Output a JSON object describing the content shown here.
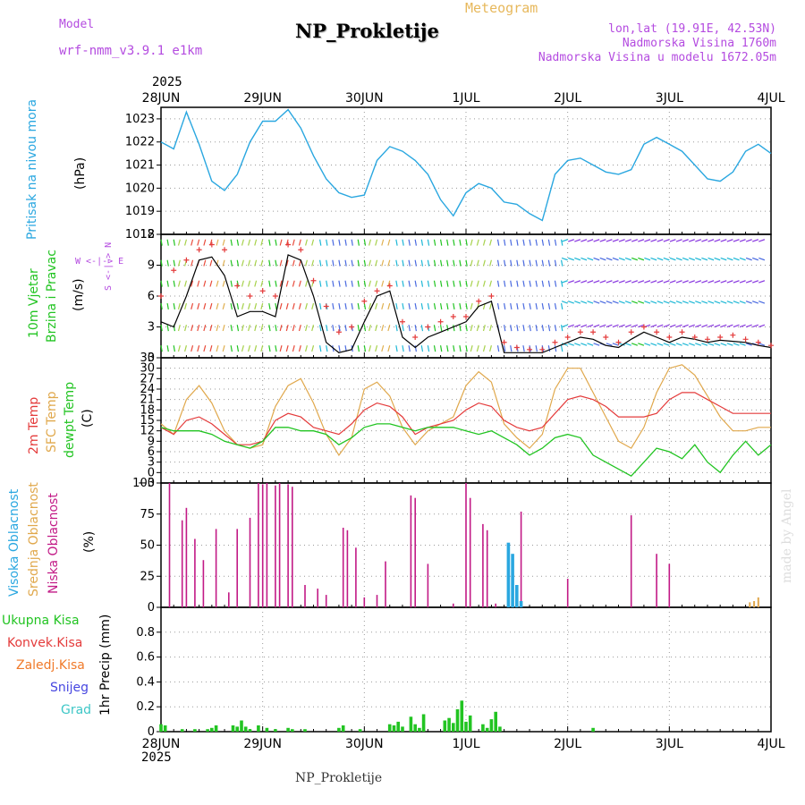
{
  "header": {
    "model_label": "Model",
    "model_name": "wrf-nmm_v3.9.1 e1km",
    "title": "NP_Prokletije",
    "subtitle": "Meteogram",
    "coords": "lon,lat (19.91E, 42.53N)",
    "elevation": "Nadmorska Visina 1760m",
    "model_elevation": "Nadmorska Visina u modelu 1672.05m",
    "year_top": "2025",
    "year_bottom": "2025",
    "footer_name": "NP_Prokletije",
    "credit": "made by Angel"
  },
  "colors": {
    "pressure": "#2aa7e0",
    "wind_speed": "#000000",
    "wind_gust": "#e43b3b",
    "temp2m": "#e43b3b",
    "sfc_temp": "#e0a84c",
    "dewpt": "#22c422",
    "high_cloud": "#2aa7e0",
    "mid_cloud": "#e0a84c",
    "low_cloud": "#c21a86",
    "precip_total": "#22c422"
  },
  "days": [
    "28JUN",
    "29JUN",
    "30JUN",
    "1JUL",
    "2JUL",
    "3JUL",
    "4JUL"
  ],
  "labels": {
    "pressure": {
      "name": "Pritisak na nivou mora",
      "unit": "(hPa)"
    },
    "wind": {
      "name1": "10m Vjetar",
      "name2": "Brzina i Pravac",
      "unit": "(m/s)",
      "compass": "W <-|-> E",
      "compass_v": "S <-|-> N"
    },
    "temp": {
      "l1": "2m Temp",
      "l2": "SFC Temp",
      "l3": "dewpt Temp",
      "unit": "(C)"
    },
    "cloud": {
      "l1": "Visoka Oblacnost",
      "l2": "Srednja Oblacnost",
      "l3": "Niska Oblacnost",
      "unit": "(%)"
    },
    "precip": {
      "l1": "Ukupna Kisa",
      "l2": "Konvek.Kisa",
      "l3": "Zaledj.Kisa",
      "l4": "Snijeg",
      "l5": "Grad",
      "axis": "1hr Precip (mm)"
    }
  },
  "chart_data": [
    {
      "type": "line",
      "name": "pressure",
      "ylabel": "(hPa)",
      "ylim": [
        1018,
        1023.5
      ],
      "yticks": [
        1018,
        1019,
        1020,
        1021,
        1022,
        1023
      ],
      "x_hours": [
        0,
        3,
        6,
        9,
        12,
        15,
        18,
        21,
        24,
        27,
        30,
        33,
        36,
        39,
        42,
        45,
        48,
        51,
        54,
        57,
        60,
        63,
        66,
        69,
        72,
        75,
        78,
        81,
        84,
        87,
        90,
        93,
        96,
        99,
        102,
        105,
        108,
        111,
        114,
        117,
        120,
        123,
        126,
        129,
        132,
        135,
        138,
        141,
        144
      ],
      "values": [
        1022.0,
        1021.7,
        1023.3,
        1021.9,
        1020.3,
        1019.9,
        1020.6,
        1022.0,
        1022.9,
        1022.9,
        1023.4,
        1022.6,
        1021.4,
        1020.4,
        1019.8,
        1019.6,
        1019.7,
        1021.2,
        1021.8,
        1021.6,
        1021.2,
        1020.6,
        1019.5,
        1018.8,
        1019.8,
        1020.2,
        1020.0,
        1019.4,
        1019.3,
        1018.9,
        1018.6,
        1020.6,
        1021.2,
        1021.3,
        1021.0,
        1020.7,
        1020.6,
        1020.8,
        1021.9,
        1022.2,
        1021.9,
        1021.6,
        1021.0,
        1020.4,
        1020.3,
        1020.7,
        1021.6,
        1021.9,
        1021.5
      ],
      "grid": true
    },
    {
      "type": "line",
      "name": "wind",
      "ylabel": "(m/s)",
      "ylim": [
        0,
        12
      ],
      "yticks": [
        0,
        3,
        6,
        9,
        12
      ],
      "x_hours": [
        0,
        3,
        6,
        9,
        12,
        15,
        18,
        21,
        24,
        27,
        30,
        33,
        36,
        39,
        42,
        45,
        48,
        51,
        54,
        57,
        60,
        63,
        66,
        69,
        72,
        75,
        78,
        81,
        84,
        87,
        90,
        93,
        96,
        99,
        102,
        105,
        108,
        111,
        114,
        117,
        120,
        123,
        126,
        129,
        132,
        135,
        138,
        141,
        144
      ],
      "series": [
        {
          "key": "speed",
          "values": [
            3.5,
            3.0,
            6.0,
            9.5,
            9.8,
            8.0,
            4.0,
            4.5,
            4.5,
            4.0,
            10.0,
            9.5,
            6.0,
            1.5,
            0.5,
            0.8,
            3.5,
            6.0,
            6.5,
            2.0,
            1.0,
            2.0,
            2.5,
            3.0,
            3.5,
            5.0,
            5.5,
            0.5,
            0.5,
            0.5,
            0.5,
            1.0,
            1.5,
            2.0,
            1.8,
            1.2,
            1.0,
            1.8,
            2.5,
            2.0,
            1.5,
            2.0,
            1.8,
            1.5,
            1.7,
            1.6,
            1.5,
            1.2,
            1.0
          ]
        },
        {
          "key": "gust",
          "values": [
            6.0,
            8.5,
            9.5,
            10.5,
            11.0,
            10.5,
            7.0,
            6.0,
            6.5,
            6.0,
            11.0,
            10.5,
            7.5,
            5.0,
            2.5,
            3.0,
            5.5,
            6.5,
            7.0,
            3.5,
            2.0,
            3.0,
            3.5,
            4.0,
            4.0,
            5.5,
            6.0,
            1.5,
            1.0,
            0.8,
            0.8,
            1.5,
            2.0,
            2.5,
            2.5,
            2.0,
            1.5,
            2.5,
            3.0,
            2.5,
            2.0,
            2.5,
            2.0,
            1.8,
            2.0,
            2.2,
            1.8,
            1.5,
            1.2
          ]
        }
      ],
      "grid": true
    },
    {
      "type": "line",
      "name": "temperature",
      "ylabel": "(C)",
      "ylim": [
        -3,
        33
      ],
      "yticks": [
        -3,
        0,
        3,
        6,
        9,
        12,
        15,
        18,
        21,
        24,
        27,
        30,
        33
      ],
      "x_hours": [
        0,
        3,
        6,
        9,
        12,
        15,
        18,
        21,
        24,
        27,
        30,
        33,
        36,
        39,
        42,
        45,
        48,
        51,
        54,
        57,
        60,
        63,
        66,
        69,
        72,
        75,
        78,
        81,
        84,
        87,
        90,
        93,
        96,
        99,
        102,
        105,
        108,
        111,
        114,
        117,
        120,
        123,
        126,
        129,
        132,
        135,
        138,
        141,
        144
      ],
      "series": [
        {
          "key": "temp2m",
          "values": [
            13,
            11,
            15,
            16,
            14,
            11,
            8,
            8,
            9,
            15,
            17,
            16,
            13,
            12,
            11,
            14,
            18,
            20,
            19,
            16,
            11,
            13,
            14,
            15,
            18,
            20,
            19,
            15,
            13,
            12,
            13,
            17,
            21,
            22,
            21,
            19,
            16,
            16,
            16,
            17,
            21,
            23,
            23,
            21,
            19,
            17,
            17,
            17,
            17
          ]
        },
        {
          "key": "sfc_temp",
          "values": [
            14,
            11,
            21,
            25,
            20,
            12,
            8,
            7,
            8,
            19,
            25,
            27,
            20,
            11,
            5,
            10,
            24,
            26,
            22,
            13,
            8,
            12,
            14,
            16,
            25,
            29,
            26,
            14,
            10,
            7,
            11,
            24,
            30,
            30,
            23,
            16,
            9,
            7,
            13,
            23,
            30,
            31,
            28,
            22,
            16,
            12,
            12,
            13,
            13
          ]
        },
        {
          "key": "dewpt",
          "values": [
            13,
            12,
            12,
            12,
            11,
            9,
            8,
            7,
            9,
            13,
            13,
            12,
            12,
            11,
            8,
            10,
            13,
            14,
            14,
            13,
            12,
            13,
            13,
            13,
            12,
            11,
            12,
            10,
            8,
            5,
            7,
            10,
            11,
            10,
            5,
            3,
            1,
            -1,
            3,
            7,
            6,
            4,
            8,
            3,
            0,
            5,
            9,
            5,
            8
          ]
        }
      ],
      "grid": true
    },
    {
      "type": "bar",
      "name": "cloud",
      "ylabel": "(%)",
      "ylim": [
        0,
        100
      ],
      "yticks": [
        0,
        25,
        50,
        75,
        100
      ],
      "series": [
        {
          "key": "low",
          "x_hours": [
            2,
            5,
            6,
            8,
            10,
            13,
            16,
            18,
            21,
            23,
            24,
            25,
            27,
            28,
            30,
            31,
            34,
            37,
            39,
            43,
            44,
            46,
            48,
            51,
            53,
            59,
            60,
            63,
            69,
            72,
            73,
            76,
            77,
            79,
            85,
            96,
            111,
            117,
            120,
            141
          ],
          "values": [
            100,
            70,
            80,
            55,
            38,
            63,
            12,
            63,
            72,
            100,
            99,
            100,
            98,
            100,
            99,
            97,
            18,
            15,
            10,
            64,
            62,
            48,
            8,
            10,
            37,
            90,
            88,
            35,
            3,
            100,
            88,
            67,
            62,
            3,
            77,
            23,
            74,
            43,
            35,
            5
          ]
        },
        {
          "key": "high",
          "x_hours": [
            82,
            83,
            84,
            85
          ],
          "values": [
            52,
            43,
            18,
            5
          ]
        },
        {
          "key": "mid",
          "x_hours": [
            139,
            140,
            141
          ],
          "values": [
            4,
            5,
            8
          ]
        }
      ],
      "grid": true
    },
    {
      "type": "bar",
      "name": "precip",
      "ylabel": "1hr Precip (mm)",
      "ylim": [
        0,
        1.0
      ],
      "yticks": [
        0,
        0.2,
        0.4,
        0.6,
        0.8
      ],
      "series": [
        {
          "key": "total",
          "x_hours": [
            0,
            1,
            5,
            8,
            11,
            12,
            13,
            17,
            18,
            19,
            20,
            21,
            23,
            25,
            27,
            30,
            31,
            34,
            42,
            43,
            47,
            54,
            55,
            56,
            57,
            59,
            60,
            61,
            62,
            67,
            68,
            69,
            70,
            71,
            72,
            73,
            76,
            77,
            78,
            79,
            80,
            102
          ],
          "values": [
            0.06,
            0.05,
            0.02,
            0.02,
            0.02,
            0.03,
            0.05,
            0.05,
            0.04,
            0.09,
            0.04,
            0.02,
            0.05,
            0.03,
            0.02,
            0.03,
            0.02,
            0.02,
            0.03,
            0.05,
            0.02,
            0.06,
            0.05,
            0.08,
            0.04,
            0.12,
            0.06,
            0.03,
            0.14,
            0.09,
            0.11,
            0.07,
            0.18,
            0.25,
            0.08,
            0.13,
            0.06,
            0.03,
            0.1,
            0.16,
            0.04,
            0.03
          ]
        }
      ],
      "grid": true
    }
  ]
}
